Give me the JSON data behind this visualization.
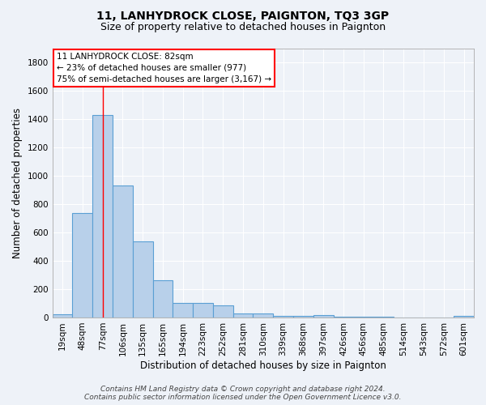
{
  "title": "11, LANHYDROCK CLOSE, PAIGNTON, TQ3 3GP",
  "subtitle": "Size of property relative to detached houses in Paignton",
  "xlabel": "Distribution of detached houses by size in Paignton",
  "ylabel": "Number of detached properties",
  "categories": [
    "19sqm",
    "48sqm",
    "77sqm",
    "106sqm",
    "135sqm",
    "165sqm",
    "194sqm",
    "223sqm",
    "252sqm",
    "281sqm",
    "310sqm",
    "339sqm",
    "368sqm",
    "397sqm",
    "426sqm",
    "456sqm",
    "485sqm",
    "514sqm",
    "543sqm",
    "572sqm",
    "601sqm"
  ],
  "values": [
    20,
    740,
    1430,
    935,
    535,
    265,
    105,
    100,
    88,
    30,
    28,
    10,
    10,
    15,
    5,
    5,
    5,
    0,
    0,
    0,
    13
  ],
  "bar_color": "#b8d0ea",
  "bar_edge_color": "#5a9fd4",
  "red_line_index": 2,
  "ylim": [
    0,
    1900
  ],
  "yticks": [
    0,
    200,
    400,
    600,
    800,
    1000,
    1200,
    1400,
    1600,
    1800
  ],
  "annotation_box_text_line1": "11 LANHYDROCK CLOSE: 82sqm",
  "annotation_box_text_line2": "← 23% of detached houses are smaller (977)",
  "annotation_box_text_line3": "75% of semi-detached houses are larger (3,167) →",
  "background_color": "#eef2f8",
  "grid_color": "#ffffff",
  "footer_line1": "Contains HM Land Registry data © Crown copyright and database right 2024.",
  "footer_line2": "Contains public sector information licensed under the Open Government Licence v3.0.",
  "title_fontsize": 10,
  "subtitle_fontsize": 9,
  "axis_label_fontsize": 8.5,
  "tick_fontsize": 7.5,
  "annotation_fontsize": 7.5,
  "footer_fontsize": 6.5
}
